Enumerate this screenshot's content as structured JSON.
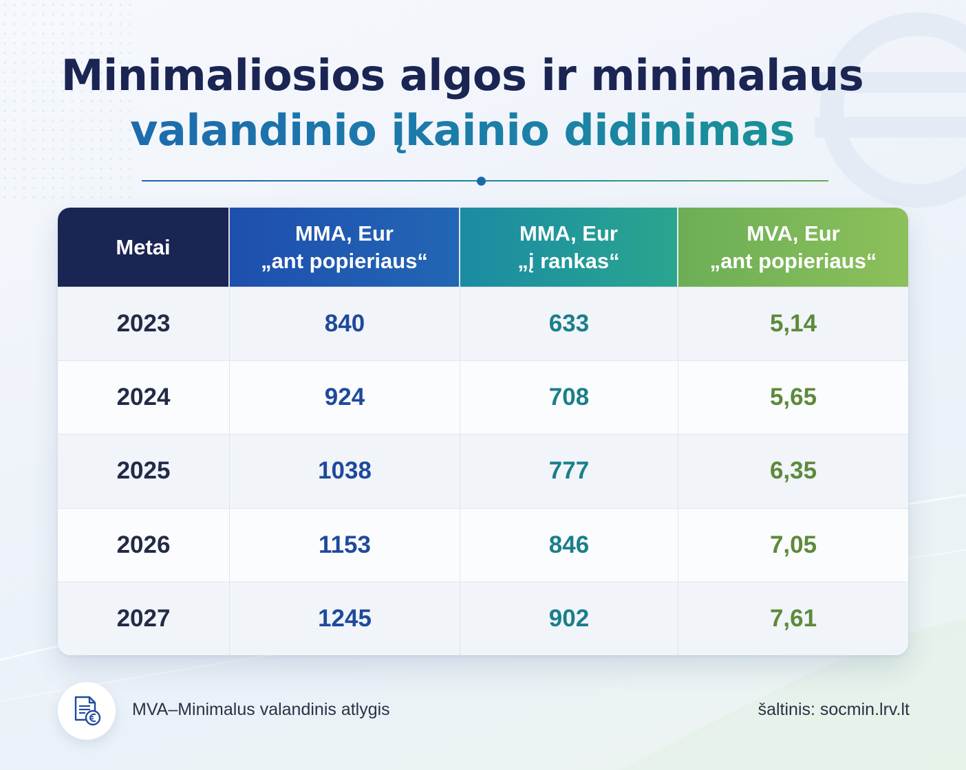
{
  "title": {
    "line1": "Minimaliosios algos ir minimalaus",
    "line2": "valandinio įkainio didinimas"
  },
  "table": {
    "headers": [
      {
        "line1": "Metai",
        "line2": ""
      },
      {
        "line1": "MMA, Eur",
        "line2": "„ant popieriaus“"
      },
      {
        "line1": "MMA, Eur",
        "line2": "„į rankas“"
      },
      {
        "line1": "MVA, Eur",
        "line2": "„ant popieriaus“"
      }
    ],
    "rows": [
      [
        "2023",
        "840",
        "633",
        "5,14"
      ],
      [
        "2024",
        "924",
        "708",
        "5,65"
      ],
      [
        "2025",
        "1038",
        "777",
        "6,35"
      ],
      [
        "2026",
        "1153",
        "846",
        "7,05"
      ],
      [
        "2027",
        "1245",
        "902",
        "7,61"
      ]
    ]
  },
  "footer": {
    "note": "MVA–Minimalus valandinis atlygis",
    "source": "šaltinis: socmin.lrv.lt",
    "icon": "document-euro-icon"
  },
  "colors": {
    "navy": "#1b2553",
    "blue": "#1e4fae",
    "teal": "#1b8ba3",
    "green": "#6cae56"
  }
}
